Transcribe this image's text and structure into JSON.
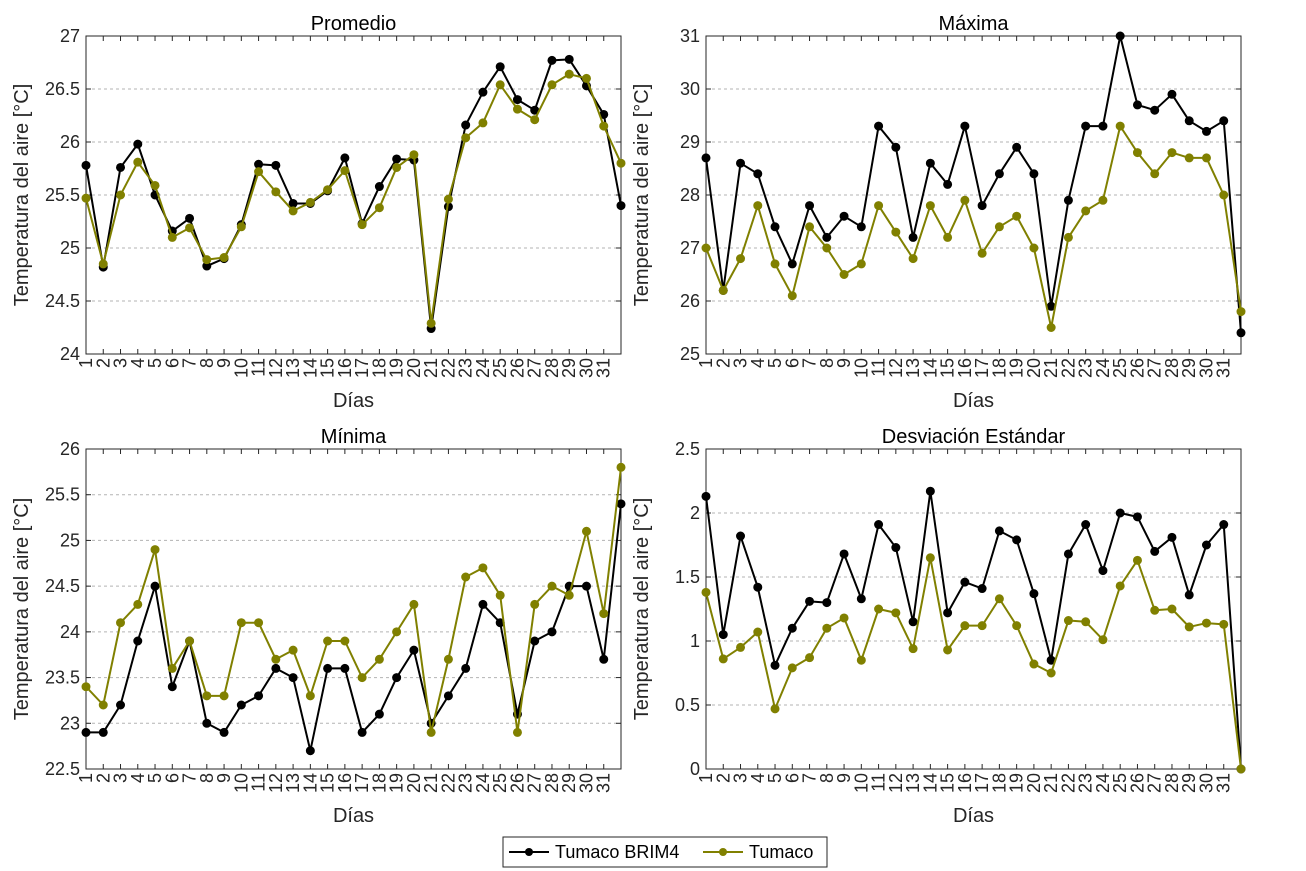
{
  "colors": {
    "series_1": "#000000",
    "series_2": "#808000",
    "grid": "#b3b3b3",
    "axis": "#262626"
  },
  "legend": {
    "placement": "bottom-center",
    "entries": [
      "Tumaco BRIM4",
      "Tumaco"
    ]
  },
  "chart_data": [
    {
      "type": "line",
      "title": "Promedio",
      "xlabel": "Días",
      "ylabel": "Temperatura del aire [°C]",
      "x": [
        1,
        2,
        3,
        4,
        5,
        6,
        7,
        8,
        9,
        10,
        11,
        12,
        13,
        14,
        15,
        16,
        17,
        18,
        19,
        20,
        21,
        22,
        23,
        24,
        25,
        26,
        27,
        28,
        29,
        30,
        31,
        32
      ],
      "xticks": [
        "1",
        "2",
        "3",
        "4",
        "5",
        "6",
        "7",
        "8",
        "9",
        "10",
        "11",
        "12",
        "13",
        "14",
        "15",
        "16",
        "17",
        "18",
        "19",
        "20",
        "21",
        "22",
        "23",
        "24",
        "25",
        "26",
        "27",
        "28",
        "29",
        "30",
        "31"
      ],
      "ylim": [
        24,
        27
      ],
      "yticks": [
        "24",
        "24.5",
        "25",
        "25.5",
        "26",
        "26.5",
        "27"
      ],
      "grid": "y-dotted",
      "series": [
        {
          "name": "Tumaco BRIM4",
          "values": [
            25.78,
            24.82,
            25.76,
            25.98,
            25.5,
            25.16,
            25.28,
            24.83,
            24.9,
            25.22,
            25.79,
            25.78,
            25.42,
            25.42,
            25.54,
            25.85,
            25.23,
            25.58,
            25.84,
            25.83,
            24.24,
            25.39,
            26.16,
            26.47,
            26.71,
            26.4,
            26.3,
            26.77,
            26.78,
            26.53,
            26.26,
            25.4
          ]
        },
        {
          "name": "Tumaco",
          "values": [
            25.47,
            24.85,
            25.5,
            25.81,
            25.59,
            25.1,
            25.19,
            24.89,
            24.91,
            25.2,
            25.72,
            25.53,
            25.35,
            25.43,
            25.55,
            25.73,
            25.22,
            25.38,
            25.76,
            25.88,
            24.29,
            25.46,
            26.04,
            26.18,
            26.54,
            26.31,
            26.21,
            26.54,
            26.64,
            26.6,
            26.15,
            25.8
          ]
        }
      ]
    },
    {
      "type": "line",
      "title": "Máxima",
      "xlabel": "Días",
      "ylabel": "Temperatura del aire [°C]",
      "x": [
        1,
        2,
        3,
        4,
        5,
        6,
        7,
        8,
        9,
        10,
        11,
        12,
        13,
        14,
        15,
        16,
        17,
        18,
        19,
        20,
        21,
        22,
        23,
        24,
        25,
        26,
        27,
        28,
        29,
        30,
        31,
        32
      ],
      "xticks": [
        "1",
        "2",
        "3",
        "4",
        "5",
        "6",
        "7",
        "8",
        "9",
        "10",
        "11",
        "12",
        "13",
        "14",
        "15",
        "16",
        "17",
        "18",
        "19",
        "20",
        "21",
        "22",
        "23",
        "24",
        "25",
        "26",
        "27",
        "28",
        "29",
        "30",
        "31"
      ],
      "ylim": [
        25,
        31
      ],
      "yticks": [
        "25",
        "26",
        "27",
        "28",
        "29",
        "30",
        "31"
      ],
      "grid": "y-dotted",
      "series": [
        {
          "name": "Tumaco BRIM4",
          "values": [
            28.7,
            26.2,
            28.6,
            28.4,
            27.4,
            26.7,
            27.8,
            27.2,
            27.6,
            27.4,
            29.3,
            28.9,
            27.2,
            28.6,
            28.2,
            29.3,
            27.8,
            28.4,
            28.9,
            28.4,
            25.9,
            27.9,
            29.3,
            29.3,
            31.0,
            29.7,
            29.6,
            29.9,
            29.4,
            29.2,
            29.4,
            25.4
          ]
        },
        {
          "name": "Tumaco",
          "values": [
            27.0,
            26.2,
            26.8,
            27.8,
            26.7,
            26.1,
            27.4,
            27.0,
            26.5,
            26.7,
            27.8,
            27.3,
            26.8,
            27.8,
            27.2,
            27.9,
            26.9,
            27.4,
            27.6,
            27.0,
            25.5,
            27.2,
            27.7,
            27.9,
            29.3,
            28.8,
            28.4,
            28.8,
            28.7,
            28.7,
            28.0,
            25.8
          ]
        }
      ]
    },
    {
      "type": "line",
      "title": "Mínima",
      "xlabel": "Días",
      "ylabel": "Temperatura del aire [°C]",
      "x": [
        1,
        2,
        3,
        4,
        5,
        6,
        7,
        8,
        9,
        10,
        11,
        12,
        13,
        14,
        15,
        16,
        17,
        18,
        19,
        20,
        21,
        22,
        23,
        24,
        25,
        26,
        27,
        28,
        29,
        30,
        31,
        32
      ],
      "xticks": [
        "1",
        "2",
        "3",
        "4",
        "5",
        "6",
        "7",
        "8",
        "9",
        "10",
        "11",
        "12",
        "13",
        "14",
        "15",
        "16",
        "17",
        "18",
        "19",
        "20",
        "21",
        "22",
        "23",
        "24",
        "25",
        "26",
        "27",
        "28",
        "29",
        "30",
        "31"
      ],
      "ylim": [
        22.5,
        26
      ],
      "yticks": [
        "22.5",
        "23",
        "23.5",
        "24",
        "24.5",
        "25",
        "25.5",
        "26"
      ],
      "grid": "y-dotted",
      "series": [
        {
          "name": "Tumaco BRIM4",
          "values": [
            22.9,
            22.9,
            23.2,
            23.9,
            24.5,
            23.4,
            23.9,
            23.0,
            22.9,
            23.2,
            23.3,
            23.6,
            23.5,
            22.7,
            23.6,
            23.6,
            22.9,
            23.1,
            23.5,
            23.8,
            23.0,
            23.3,
            23.6,
            24.3,
            24.1,
            23.1,
            23.9,
            24.0,
            24.5,
            24.5,
            23.7,
            25.4
          ]
        },
        {
          "name": "Tumaco",
          "values": [
            23.4,
            23.2,
            24.1,
            24.3,
            24.9,
            23.6,
            23.9,
            23.3,
            23.3,
            24.1,
            24.1,
            23.7,
            23.8,
            23.3,
            23.9,
            23.9,
            23.5,
            23.7,
            24.0,
            24.3,
            22.9,
            23.7,
            24.6,
            24.7,
            24.4,
            22.9,
            24.3,
            24.5,
            24.4,
            25.1,
            24.2,
            25.8
          ]
        }
      ]
    },
    {
      "type": "line",
      "title": "Desviación Estándar",
      "xlabel": "Días",
      "ylabel": "Temperatura del aire [°C]",
      "x": [
        1,
        2,
        3,
        4,
        5,
        6,
        7,
        8,
        9,
        10,
        11,
        12,
        13,
        14,
        15,
        16,
        17,
        18,
        19,
        20,
        21,
        22,
        23,
        24,
        25,
        26,
        27,
        28,
        29,
        30,
        31,
        32
      ],
      "xticks": [
        "1",
        "2",
        "3",
        "4",
        "5",
        "6",
        "7",
        "8",
        "9",
        "10",
        "11",
        "12",
        "13",
        "14",
        "15",
        "16",
        "17",
        "18",
        "19",
        "20",
        "21",
        "22",
        "23",
        "24",
        "25",
        "26",
        "27",
        "28",
        "29",
        "30",
        "31"
      ],
      "ylim": [
        0,
        2.5
      ],
      "yticks": [
        "0",
        "0.5",
        "1",
        "1.5",
        "2",
        "2.5"
      ],
      "grid": "y-dotted",
      "series": [
        {
          "name": "Tumaco BRIM4",
          "values": [
            2.13,
            1.05,
            1.82,
            1.42,
            0.81,
            1.1,
            1.31,
            1.3,
            1.68,
            1.33,
            1.91,
            1.73,
            1.15,
            2.17,
            1.22,
            1.46,
            1.41,
            1.86,
            1.79,
            1.37,
            0.85,
            1.68,
            1.91,
            1.55,
            2.0,
            1.97,
            1.7,
            1.81,
            1.36,
            1.75,
            1.91,
            0.0
          ]
        },
        {
          "name": "Tumaco",
          "values": [
            1.38,
            0.86,
            0.95,
            1.07,
            0.47,
            0.79,
            0.87,
            1.1,
            1.18,
            0.85,
            1.25,
            1.22,
            0.94,
            1.65,
            0.93,
            1.12,
            1.12,
            1.33,
            1.12,
            0.82,
            0.75,
            1.16,
            1.15,
            1.01,
            1.43,
            1.63,
            1.24,
            1.25,
            1.11,
            1.14,
            1.13,
            0.0
          ]
        }
      ]
    }
  ]
}
